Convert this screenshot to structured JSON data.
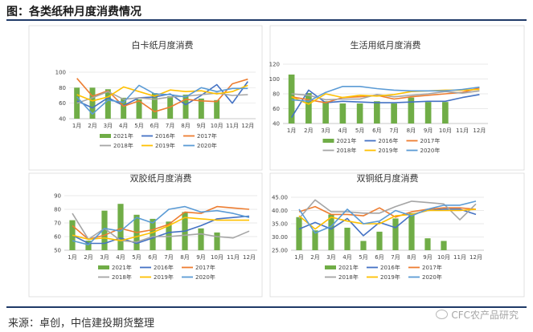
{
  "figure": {
    "title": "图：各类纸种月度消费情况",
    "source": "来源：卓创，中信建投期货整理",
    "watermark": "CFC农产品研究"
  },
  "colors": {
    "2021年": "#70ad47",
    "2016年": "#4472c4",
    "2017年": "#ed7d31",
    "2018年": "#a5a5a5",
    "2019年": "#ffc000",
    "2020年": "#5b9bd5",
    "rule": "#1f3a68"
  },
  "chart_data": [
    {
      "type": "bar",
      "title": "白卡纸月度消费",
      "categories": [
        "1月",
        "2月",
        "3月",
        "4月",
        "5月",
        "6月",
        "7月",
        "8月",
        "9月",
        "10月",
        "11月",
        "12月"
      ],
      "ylim": [
        40,
        100
      ],
      "yticks": [
        40,
        60,
        80,
        100
      ],
      "legend_placement": "bottom",
      "legend_rows": [
        [
          "2021年",
          "2016年",
          "2017年"
        ],
        [
          "2018年",
          "2019年",
          "2020年"
        ]
      ],
      "series": [
        {
          "name": "2021年",
          "kind": "bar",
          "values": [
            80,
            80,
            78,
            67,
            65,
            73,
            69,
            71,
            66,
            64,
            null,
            null
          ]
        },
        {
          "name": "2016年",
          "kind": "line",
          "values": [
            63,
            54,
            67,
            57,
            67,
            68,
            72,
            58,
            70,
            84,
            60,
            88
          ]
        },
        {
          "name": "2017年",
          "kind": "line",
          "values": [
            92,
            69,
            76,
            56,
            63,
            49,
            55,
            65,
            63,
            62,
            85,
            91
          ]
        },
        {
          "name": "2018年",
          "kind": "line",
          "values": [
            60,
            67,
            75,
            65,
            67,
            65,
            68,
            69,
            71,
            73,
            70,
            71
          ]
        },
        {
          "name": "2019年",
          "kind": "line",
          "values": [
            71,
            63,
            68,
            81,
            75,
            69,
            77,
            75,
            76,
            72,
            75,
            83
          ]
        },
        {
          "name": "2020年",
          "kind": "line",
          "values": [
            68,
            46,
            64,
            61,
            83,
            72,
            71,
            68,
            80,
            75,
            79,
            79
          ]
        }
      ]
    },
    {
      "type": "bar",
      "title": "生活用纸月度消费",
      "categories": [
        "1月",
        "2月",
        "3月",
        "4月",
        "5月",
        "6月",
        "7月",
        "8月",
        "9月",
        "10月",
        "11月",
        "12月"
      ],
      "ylim": [
        40,
        120
      ],
      "yticks": [
        40,
        60,
        80,
        100,
        120
      ],
      "legend_placement": "bottom",
      "legend_rows": [
        [
          "2021年",
          "2016年",
          "2017年"
        ],
        [
          "2018年",
          "2019年",
          "2020年"
        ]
      ],
      "series": [
        {
          "name": "2021年",
          "kind": "bar",
          "values": [
            106,
            81,
            70,
            67,
            67,
            70,
            67,
            75,
            69,
            69,
            null,
            null
          ]
        },
        {
          "name": "2016年",
          "kind": "line",
          "values": [
            48,
            85,
            68,
            70,
            69,
            68,
            68,
            69,
            70,
            70,
            75,
            79
          ]
        },
        {
          "name": "2017年",
          "kind": "line",
          "values": [
            76,
            72,
            68,
            75,
            76,
            78,
            73,
            76,
            78,
            80,
            82,
            88
          ]
        },
        {
          "name": "2018年",
          "kind": "line",
          "values": [
            80,
            78,
            72,
            73,
            73,
            79,
            76,
            78,
            80,
            83,
            81,
            84
          ]
        },
        {
          "name": "2019年",
          "kind": "line",
          "values": [
            76,
            66,
            80,
            75,
            78,
            77,
            79,
            83,
            84,
            85,
            85,
            86
          ]
        },
        {
          "name": "2020年",
          "kind": "line",
          "values": [
            72,
            70,
            82,
            90,
            90,
            87,
            85,
            84,
            84,
            84,
            86,
            89
          ]
        }
      ]
    },
    {
      "type": "bar",
      "title": "双胶纸月度消费",
      "categories": [
        "1月",
        "2月",
        "3月",
        "4月",
        "5月",
        "6月",
        "7月",
        "8月",
        "9月",
        "10月",
        "11月",
        "12月"
      ],
      "ylim": [
        50,
        90
      ],
      "yticks": [
        50,
        60,
        70,
        80,
        90
      ],
      "legend_placement": "bottom",
      "legend_rows": [
        [
          "2021年",
          "2016年",
          "2017年"
        ],
        [
          "2018年",
          "2019年",
          "2020年"
        ]
      ],
      "series": [
        {
          "name": "2021年",
          "kind": "bar",
          "values": [
            72,
            57,
            79,
            84,
            76,
            73,
            71,
            78,
            66,
            63,
            null,
            null
          ]
        },
        {
          "name": "2016年",
          "kind": "line",
          "values": [
            61,
            55,
            55,
            59,
            55,
            59,
            63,
            64,
            68,
            73,
            74,
            75
          ]
        },
        {
          "name": "2017年",
          "kind": "line",
          "values": [
            68,
            58,
            61,
            66,
            63,
            65,
            69,
            78,
            77,
            82,
            81,
            80
          ]
        },
        {
          "name": "2018年",
          "kind": "line",
          "values": [
            77,
            58,
            66,
            57,
            56,
            60,
            60,
            61,
            62,
            60,
            59,
            64
          ]
        },
        {
          "name": "2019年",
          "kind": "line",
          "values": [
            61,
            58,
            59,
            57,
            60,
            63,
            68,
            74,
            73,
            72,
            72,
            72
          ]
        },
        {
          "name": "2020年",
          "kind": "line",
          "values": [
            57,
            54,
            66,
            64,
            74,
            70,
            80,
            82,
            78,
            79,
            77,
            74
          ]
        }
      ]
    },
    {
      "type": "bar",
      "title": "双铜纸月度消费",
      "categories": [
        "1月",
        "2月",
        "3月",
        "4月",
        "5月",
        "6月",
        "7月",
        "8月",
        "9月",
        "10月",
        "11月",
        "12月"
      ],
      "ylim": [
        25,
        45
      ],
      "yticks": [
        25.0,
        30.0,
        35.0,
        40.0,
        45.0
      ],
      "ytick_labels": [
        "25.00",
        "30.00",
        "35.00",
        "40.00",
        "45.00"
      ],
      "legend_placement": "bottom",
      "legend_rows": [
        [
          "2021年",
          "2016年",
          "2017年"
        ],
        [
          "2018年",
          "2019年",
          "2020年"
        ]
      ],
      "series": [
        {
          "name": "2021年",
          "kind": "bar",
          "values": [
            37.5,
            32.5,
            38.5,
            33.5,
            28.5,
            32,
            37,
            39,
            29.5,
            28.5,
            null,
            null
          ]
        },
        {
          "name": "2016年",
          "kind": "line",
          "values": [
            33,
            35.5,
            33,
            37,
            30.5,
            35.5,
            33.5,
            38.5,
            40,
            40.5,
            40.5,
            38.5
          ]
        },
        {
          "name": "2017年",
          "kind": "line",
          "values": [
            39.5,
            41.5,
            38.5,
            38.5,
            38,
            41,
            37.5,
            39.5,
            40.5,
            41,
            41,
            40.5
          ]
        },
        {
          "name": "2018年",
          "kind": "line",
          "values": [
            37,
            44,
            39.5,
            39.5,
            39,
            39,
            41.5,
            43.5,
            43,
            42.5,
            36.5,
            42.5
          ]
        },
        {
          "name": "2019年",
          "kind": "line",
          "values": [
            38,
            33,
            37.5,
            36,
            35,
            35,
            38,
            38.5,
            40,
            40,
            40,
            40.5
          ]
        },
        {
          "name": "2020年",
          "kind": "line",
          "values": [
            40.5,
            31.5,
            34,
            40.5,
            35,
            36,
            40,
            38,
            40.5,
            42,
            42,
            43.5
          ]
        }
      ]
    }
  ]
}
